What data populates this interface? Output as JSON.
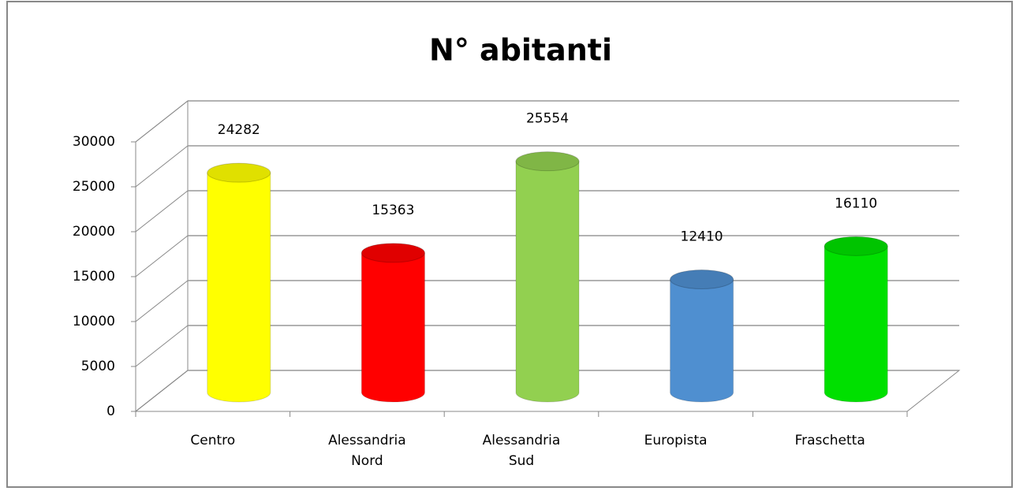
{
  "chart_data": {
    "type": "bar",
    "title": "N° abitanti",
    "categories": [
      "Centro",
      "Alessandria Nord",
      "Alessandria Sud",
      "Europista",
      "Fraschetta"
    ],
    "values": [
      24282,
      15363,
      25554,
      12410,
      16110
    ],
    "colors": [
      "#ffff00",
      "#ff0000",
      "#92d050",
      "#4f8fd0",
      "#00e000"
    ],
    "ylim": [
      0,
      30000
    ],
    "yticks": [
      0,
      5000,
      10000,
      15000,
      20000,
      25000,
      30000
    ],
    "grid": true
  }
}
